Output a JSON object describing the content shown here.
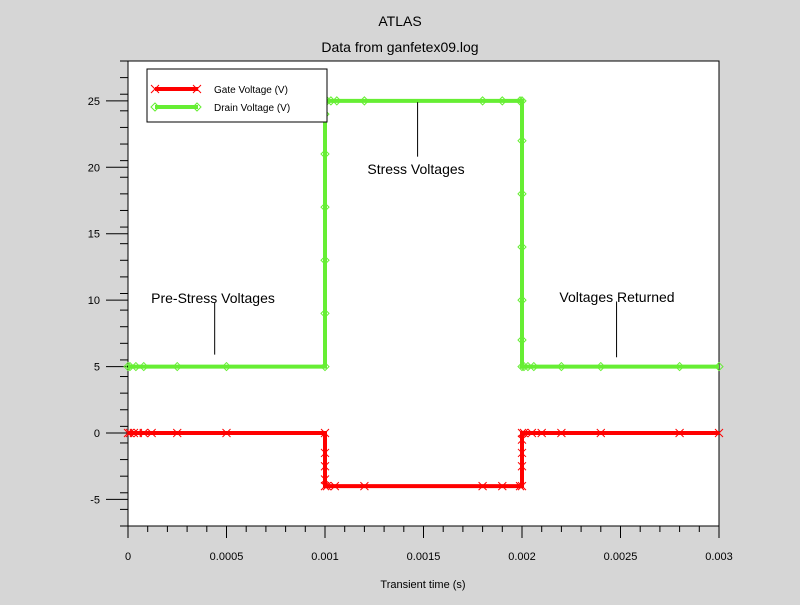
{
  "chart_data": {
    "type": "line",
    "title": "ATLAS",
    "subtitle": "Data from ganfetex09.log",
    "xlabel": "Transient time (s)",
    "ylabel": "",
    "xlim": [
      0,
      0.003
    ],
    "ylim": [
      -7,
      28
    ],
    "x_ticks": [
      0,
      0.0005,
      0.001,
      0.0015,
      0.002,
      0.0025,
      0.003
    ],
    "x_tick_labels": [
      "0",
      "0.0005",
      "0.001",
      "0.0015",
      "0.002",
      "0.0025",
      "0.003"
    ],
    "y_ticks": [
      -5,
      0,
      5,
      10,
      15,
      20,
      25
    ],
    "y_tick_labels": [
      "-5",
      "0",
      "5",
      "10",
      "15",
      "20",
      "25"
    ],
    "grid": false,
    "legend_position": "top-left",
    "series": [
      {
        "name": "Gate Voltage (V)",
        "color": "#ff0000",
        "marker": "x",
        "x": [
          0,
          1e-05,
          3e-05,
          5e-05,
          8e-05,
          0.00012,
          0.00025,
          0.0005,
          0.001,
          0.001,
          0.001,
          0.001,
          0.001,
          0.00101,
          0.00105,
          0.0012,
          0.0018,
          0.0019,
          0.00199,
          0.002,
          0.002,
          0.002,
          0.002,
          0.002,
          0.00201,
          0.00205,
          0.0021,
          0.0022,
          0.0024,
          0.0028,
          0.003
        ],
        "y": [
          0,
          0,
          0,
          0,
          0,
          0,
          0,
          0,
          0,
          -1.5,
          -2.5,
          -3.5,
          -4,
          -4,
          -4,
          -4,
          -4,
          -4,
          -4,
          -4,
          -2.5,
          -1.5,
          -0.5,
          0,
          0,
          0,
          0,
          0,
          0,
          0,
          0
        ]
      },
      {
        "name": "Drain Voltage (V)",
        "color": "#66ee33",
        "marker": "diamond",
        "x": [
          0,
          1e-05,
          4e-05,
          8e-05,
          0.00025,
          0.0005,
          0.001,
          0.001,
          0.001,
          0.001,
          0.001,
          0.001,
          0.001,
          0.00101,
          0.00103,
          0.00106,
          0.0012,
          0.0018,
          0.0019,
          0.00199,
          0.002,
          0.002,
          0.002,
          0.002,
          0.002,
          0.002,
          0.002,
          0.00201,
          0.00203,
          0.00206,
          0.0022,
          0.0024,
          0.0028,
          0.003
        ],
        "y": [
          5,
          5,
          5,
          5,
          5,
          5,
          5,
          9,
          13,
          17,
          21,
          24,
          25,
          25,
          25,
          25,
          25,
          25,
          25,
          25,
          25,
          22,
          18,
          14,
          10,
          7,
          5,
          5,
          5,
          5,
          5,
          5,
          5,
          5
        ]
      }
    ],
    "annotations": [
      {
        "text": "Pre-Stress Voltages",
        "line_x": 0.00044,
        "line_y": [
          5.9,
          9.8
        ]
      },
      {
        "text": "Stress Voltages",
        "line_x": 0.00147,
        "line_y": [
          20.8,
          24.9
        ]
      },
      {
        "text": "Voltages Returned",
        "line_x": 0.00248,
        "line_y": [
          5.7,
          9.9
        ]
      }
    ]
  }
}
